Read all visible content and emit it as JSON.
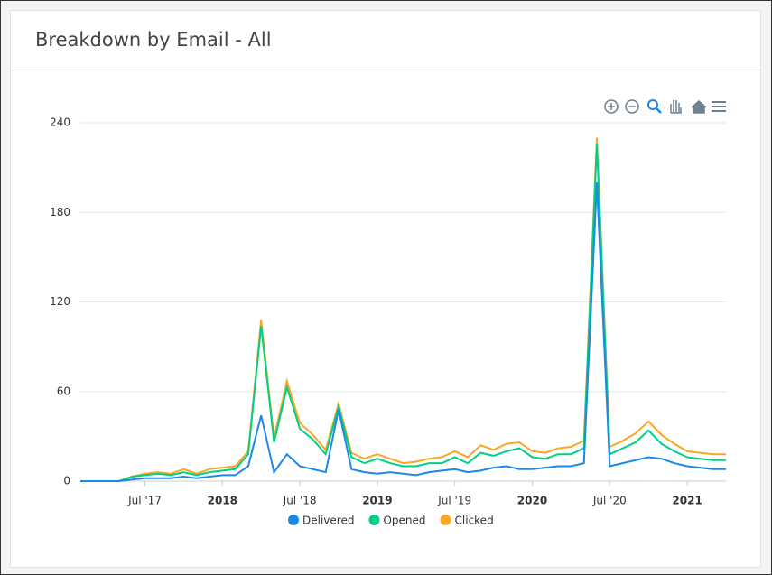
{
  "chart_data": {
    "type": "stacked-line",
    "title": "Breakdown by Email - All",
    "x": [
      "2017-02",
      "2017-03",
      "2017-04",
      "2017-05",
      "2017-06",
      "2017-07",
      "2017-08",
      "2017-09",
      "2017-10",
      "2017-11",
      "2017-12",
      "2018-01",
      "2018-02",
      "2018-03",
      "2018-04",
      "2018-05",
      "2018-06",
      "2018-07",
      "2018-08",
      "2018-09",
      "2018-10",
      "2018-11",
      "2018-12",
      "2019-01",
      "2019-02",
      "2019-03",
      "2019-04",
      "2019-05",
      "2019-06",
      "2019-07",
      "2019-08",
      "2019-09",
      "2019-10",
      "2019-11",
      "2019-12",
      "2020-01",
      "2020-02",
      "2020-03",
      "2020-04",
      "2020-05",
      "2020-06",
      "2020-07",
      "2020-08",
      "2020-09",
      "2020-10",
      "2020-11",
      "2020-12",
      "2021-01",
      "2021-02",
      "2021-03",
      "2021-04"
    ],
    "series": [
      {
        "name": "Delivered",
        "color": "#1e88e5",
        "values": [
          0,
          0,
          0,
          0,
          1,
          2,
          2,
          2,
          3,
          2,
          3,
          4,
          4,
          10,
          44,
          6,
          18,
          10,
          8,
          6,
          48,
          8,
          6,
          5,
          6,
          5,
          4,
          6,
          7,
          8,
          6,
          7,
          9,
          10,
          8,
          8,
          9,
          10,
          10,
          12,
          200,
          10,
          12,
          14,
          16,
          15,
          12,
          10,
          9,
          8,
          8
        ]
      },
      {
        "name": "Opened",
        "color": "#00d084",
        "values": [
          0,
          0,
          0,
          0,
          2,
          2,
          3,
          2,
          3,
          2,
          3,
          3,
          4,
          8,
          60,
          20,
          45,
          25,
          20,
          12,
          2,
          8,
          6,
          10,
          6,
          5,
          6,
          6,
          5,
          8,
          6,
          12,
          8,
          10,
          14,
          8,
          6,
          8,
          8,
          10,
          26,
          8,
          10,
          12,
          18,
          10,
          8,
          6,
          6,
          6,
          6
        ]
      },
      {
        "name": "Clicked",
        "color": "#f9a825",
        "values": [
          0,
          0,
          0,
          0,
          0,
          1,
          1,
          1,
          2,
          1,
          2,
          2,
          2,
          2,
          4,
          3,
          4,
          4,
          3,
          3,
          2,
          3,
          3,
          3,
          3,
          2,
          3,
          3,
          4,
          4,
          4,
          5,
          4,
          5,
          4,
          4,
          4,
          4,
          5,
          5,
          4,
          5,
          5,
          6,
          6,
          6,
          5,
          4,
          4,
          4,
          4
        ]
      }
    ],
    "ylim": [
      0,
      240
    ],
    "yticks": [
      0,
      60,
      120,
      180,
      240
    ],
    "xticks": [
      {
        "value": "2017-07",
        "label": "Jul '17"
      },
      {
        "value": "2018-01",
        "label": "2018"
      },
      {
        "value": "2018-07",
        "label": "Jul '18"
      },
      {
        "value": "2019-01",
        "label": "2019"
      },
      {
        "value": "2019-07",
        "label": "Jul '19"
      },
      {
        "value": "2020-01",
        "label": "2020"
      },
      {
        "value": "2020-07",
        "label": "Jul '20"
      },
      {
        "value": "2021-01",
        "label": "2021"
      }
    ],
    "grid": true,
    "stacked": true,
    "legend": "bottom"
  }
}
